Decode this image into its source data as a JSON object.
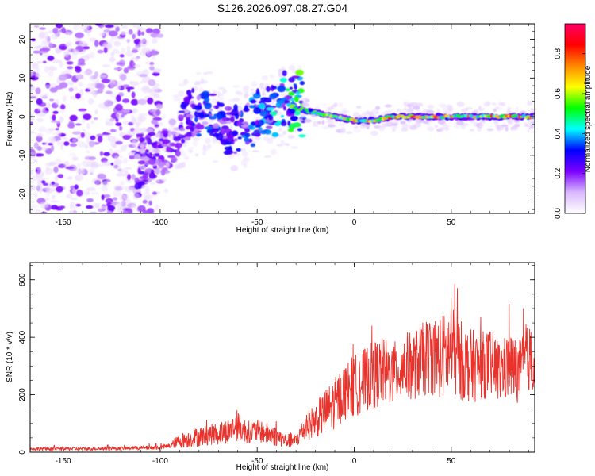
{
  "title": "S126.2026.097.08.27.G04",
  "chart_data": [
    {
      "type": "heatmap",
      "name": "spectrogram",
      "xlabel": "Height of straight line (km)",
      "ylabel": "Frequency (Hz)",
      "xlim": [
        -167,
        93
      ],
      "ylim": [
        -25,
        24
      ],
      "xticks": [
        -150,
        -100,
        -50,
        0,
        50
      ],
      "yticks": [
        -20,
        -10,
        0,
        10,
        20
      ],
      "ridge": {
        "description": "strong spectral ridge along frequency ~0 Hz for heights > -28 km; noisy scattered speckle for heights < -100 km; diagonal rising band between -110 km and -30 km",
        "x": [
          -110,
          -95,
          -85,
          -75,
          -65,
          -55,
          -45,
          -35,
          -28,
          -20,
          -10,
          0,
          10,
          20,
          30,
          40,
          50,
          60,
          70,
          80,
          90
        ],
        "freq": [
          -12,
          -8,
          1,
          1,
          -4,
          -2,
          0,
          3,
          2,
          1,
          0,
          -1,
          -1,
          0,
          0,
          0,
          0,
          0,
          0,
          0,
          0
        ],
        "amplitude": [
          0.25,
          0.2,
          0.3,
          0.35,
          0.3,
          0.35,
          0.4,
          0.5,
          0.6,
          0.65,
          0.7,
          0.75,
          0.8,
          0.85,
          0.85,
          0.85,
          0.85,
          0.85,
          0.85,
          0.85,
          0.85
        ]
      },
      "colorbar": {
        "label": "Normalized spectral amplitude",
        "min": 0.0,
        "max": 0.95,
        "ticks": [
          0.0,
          0.2,
          0.4,
          0.6,
          0.8
        ],
        "tick_labels": [
          "0.0",
          "0.2",
          "0.4",
          "0.6",
          "0.8"
        ],
        "colors": [
          "#ffffff",
          "#d9b8ff",
          "#7b00ff",
          "#0000ff",
          "#00ffff",
          "#00ff00",
          "#ffff00",
          "#ff8800",
          "#ff0000",
          "#ff0066"
        ]
      }
    },
    {
      "type": "line",
      "name": "snr",
      "xlabel": "Height of straight line (km)",
      "ylabel": "SNR (10 * v/v)",
      "xlim": [
        -167,
        93
      ],
      "ylim": [
        0,
        660
      ],
      "xticks": [
        -150,
        -100,
        -50,
        0,
        50
      ],
      "yticks": [
        0,
        200,
        400,
        600
      ],
      "color": "#e8322b",
      "envelope": {
        "x": [
          -167,
          -140,
          -120,
          -100,
          -95,
          -90,
          -85,
          -80,
          -75,
          -70,
          -65,
          -60,
          -55,
          -50,
          -45,
          -40,
          -35,
          -30,
          -25,
          -20,
          -15,
          -10,
          -5,
          0,
          5,
          10,
          15,
          20,
          25,
          30,
          35,
          40,
          45,
          50,
          55,
          60,
          65,
          70,
          75,
          80,
          85,
          90,
          93
        ],
        "mean": [
          12,
          12,
          14,
          16,
          22,
          40,
          45,
          55,
          60,
          65,
          75,
          90,
          70,
          75,
          65,
          55,
          40,
          40,
          90,
          110,
          140,
          170,
          210,
          230,
          250,
          270,
          280,
          270,
          300,
          300,
          320,
          340,
          330,
          350,
          320,
          300,
          300,
          310,
          280,
          300,
          280,
          330,
          300
        ],
        "spread": [
          6,
          6,
          6,
          8,
          10,
          25,
          30,
          35,
          35,
          40,
          45,
          50,
          40,
          40,
          40,
          35,
          25,
          25,
          50,
          60,
          80,
          90,
          100,
          110,
          110,
          120,
          120,
          110,
          120,
          120,
          130,
          140,
          150,
          160,
          140,
          130,
          120,
          120,
          110,
          120,
          110,
          120,
          110
        ]
      }
    }
  ]
}
